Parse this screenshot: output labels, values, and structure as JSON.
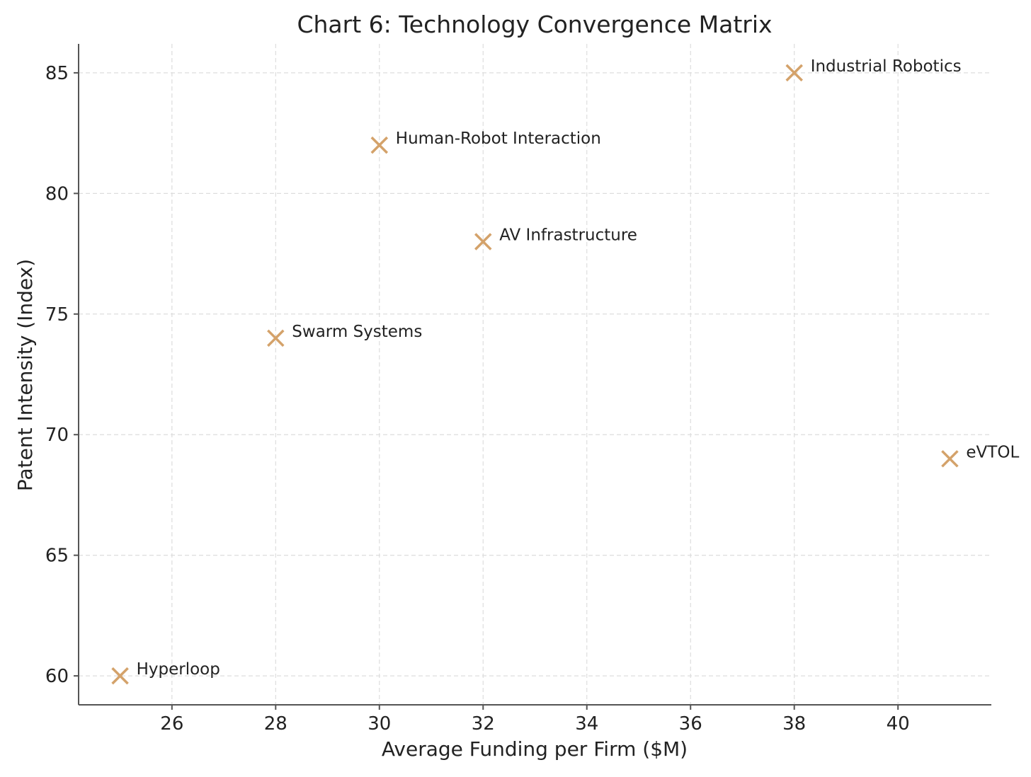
{
  "chart_data": {
    "type": "scatter",
    "title": "Chart 6: Technology Convergence Matrix",
    "xlabel": "Average Funding per Firm ($M)",
    "ylabel": "Patent Intensity (Index)",
    "xlim": [
      24.2,
      41.8
    ],
    "ylim": [
      58.8,
      86.2
    ],
    "xticks": [
      26,
      28,
      30,
      32,
      34,
      36,
      38,
      40
    ],
    "yticks": [
      60,
      65,
      70,
      75,
      80,
      85
    ],
    "grid": true,
    "marker": "x",
    "marker_color": "#D4A26A",
    "points": [
      {
        "label": "Industrial Robotics",
        "x": 38,
        "y": 85
      },
      {
        "label": "Human-Robot Interaction",
        "x": 30,
        "y": 82
      },
      {
        "label": "AV Infrastructure",
        "x": 32,
        "y": 78
      },
      {
        "label": "Swarm Systems",
        "x": 28,
        "y": 74
      },
      {
        "label": "eVTOL",
        "x": 41,
        "y": 69
      },
      {
        "label": "Hyperloop",
        "x": 25,
        "y": 60
      }
    ]
  }
}
